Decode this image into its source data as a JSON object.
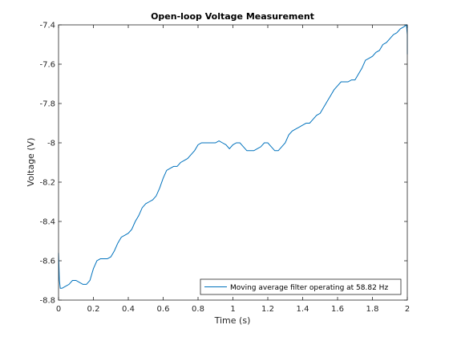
{
  "chart_data": {
    "type": "line",
    "title": "Open-loop Voltage Measurement",
    "xlabel": "Time (s)",
    "ylabel": "Voltage (V)",
    "xlim": [
      0,
      2
    ],
    "ylim": [
      -8.8,
      -7.4
    ],
    "xticks": [
      0,
      0.2,
      0.4,
      0.6,
      0.8,
      1,
      1.2,
      1.4,
      1.6,
      1.8,
      2
    ],
    "xtick_labels": [
      "0",
      "0.2",
      "0.4",
      "0.6",
      "0.8",
      "1",
      "1.2",
      "1.4",
      "1.6",
      "1.8",
      "2"
    ],
    "yticks": [
      -8.8,
      -8.6,
      -8.4,
      -8.2,
      -8,
      -7.8,
      -7.6,
      -7.4
    ],
    "ytick_labels": [
      "-8.8",
      "-8.6",
      "-8.4",
      "-8.2",
      "-8",
      "-7.8",
      "-7.6",
      "-7.4"
    ],
    "grid": false,
    "legend_position": "bottom-right",
    "colors": {
      "series": "#0072bd",
      "axes": "#262626"
    },
    "series": [
      {
        "name": "Moving average filter operating at 58.82 Hz",
        "x": [
          0,
          0.005,
          0.01,
          0.02,
          0.04,
          0.06,
          0.08,
          0.1,
          0.12,
          0.14,
          0.16,
          0.18,
          0.2,
          0.22,
          0.24,
          0.26,
          0.28,
          0.3,
          0.32,
          0.34,
          0.36,
          0.38,
          0.4,
          0.42,
          0.44,
          0.46,
          0.48,
          0.5,
          0.52,
          0.54,
          0.56,
          0.58,
          0.6,
          0.62,
          0.64,
          0.66,
          0.68,
          0.7,
          0.72,
          0.74,
          0.76,
          0.78,
          0.8,
          0.82,
          0.84,
          0.86,
          0.88,
          0.9,
          0.92,
          0.94,
          0.96,
          0.98,
          1,
          1.02,
          1.04,
          1.06,
          1.08,
          1.1,
          1.12,
          1.14,
          1.16,
          1.18,
          1.2,
          1.22,
          1.24,
          1.26,
          1.28,
          1.3,
          1.32,
          1.34,
          1.36,
          1.38,
          1.4,
          1.42,
          1.44,
          1.46,
          1.48,
          1.5,
          1.52,
          1.54,
          1.56,
          1.58,
          1.6,
          1.62,
          1.64,
          1.66,
          1.68,
          1.7,
          1.72,
          1.74,
          1.76,
          1.78,
          1.8,
          1.82,
          1.84,
          1.86,
          1.88,
          1.9,
          1.92,
          1.94,
          1.96,
          1.98,
          1.995,
          2,
          2
        ],
        "y": [
          -8.56,
          -8.7,
          -8.74,
          -8.74,
          -8.73,
          -8.72,
          -8.7,
          -8.7,
          -8.71,
          -8.72,
          -8.72,
          -8.7,
          -8.64,
          -8.6,
          -8.59,
          -8.59,
          -8.59,
          -8.58,
          -8.55,
          -8.51,
          -8.48,
          -8.47,
          -8.46,
          -8.44,
          -8.4,
          -8.37,
          -8.33,
          -8.31,
          -8.3,
          -8.29,
          -8.27,
          -8.23,
          -8.18,
          -8.14,
          -8.13,
          -8.12,
          -8.12,
          -8.1,
          -8.09,
          -8.08,
          -8.06,
          -8.04,
          -8.01,
          -8,
          -8,
          -8,
          -8.0,
          -8,
          -7.99,
          -8,
          -8.01,
          -8.03,
          -8.01,
          -8,
          -8,
          -8.02,
          -8.04,
          -8.04,
          -8.04,
          -8.03,
          -8.02,
          -8.0,
          -8.0,
          -8.02,
          -8.04,
          -8.04,
          -8.02,
          -8.0,
          -7.96,
          -7.94,
          -7.93,
          -7.92,
          -7.91,
          -7.9,
          -7.9,
          -7.88,
          -7.86,
          -7.85,
          -7.82,
          -7.79,
          -7.76,
          -7.73,
          -7.71,
          -7.69,
          -7.69,
          -7.69,
          -7.68,
          -7.68,
          -7.65,
          -7.62,
          -7.58,
          -7.57,
          -7.56,
          -7.54,
          -7.53,
          -7.5,
          -7.49,
          -7.47,
          -7.45,
          -7.44,
          -7.42,
          -7.41,
          -7.4,
          -7.45,
          -7.55
        ]
      }
    ]
  }
}
